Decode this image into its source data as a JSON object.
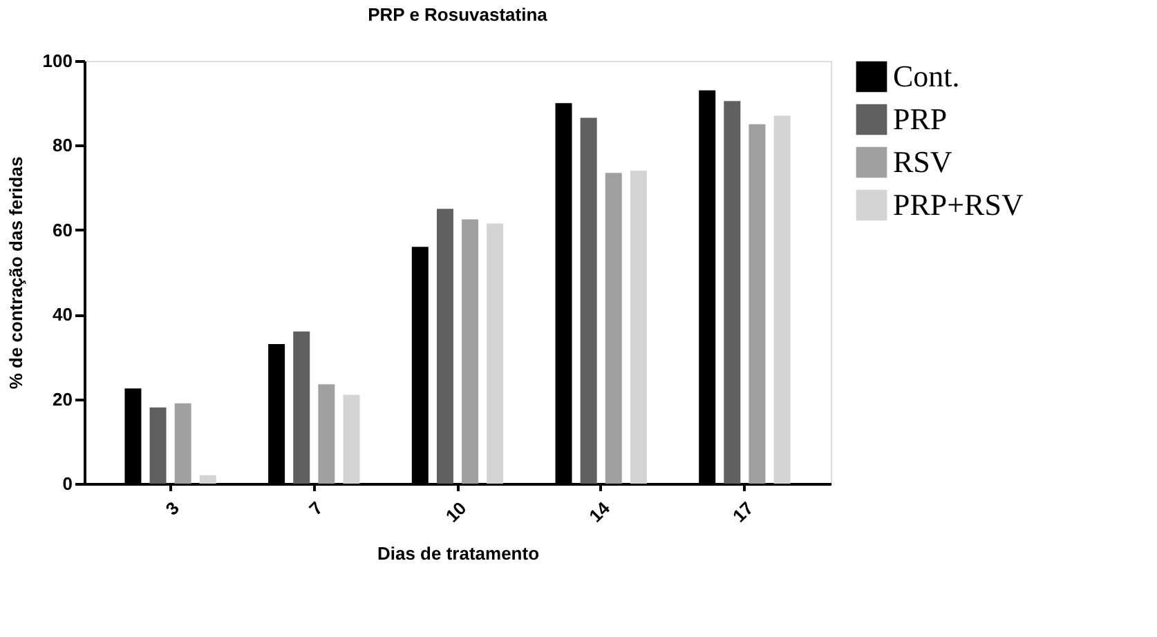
{
  "chart_data": {
    "type": "bar",
    "title": "PRP e Rosuvastatina",
    "xlabel": "Dias de tratamento",
    "ylabel": "% de contração das feridas",
    "categories": [
      "3",
      "7",
      "10",
      "14",
      "17"
    ],
    "series": [
      {
        "name": "Cont.",
        "color": "#000000",
        "values": [
          22.5,
          33,
          56,
          90,
          93
        ]
      },
      {
        "name": "PRP",
        "color": "#606060",
        "values": [
          18,
          36,
          65,
          86.5,
          90.5
        ]
      },
      {
        "name": "RSV",
        "color": "#a0a0a1",
        "values": [
          19,
          23.5,
          62.5,
          73.5,
          85
        ]
      },
      {
        "name": "PRP+RSV",
        "color": "#d4d4d4",
        "values": [
          2,
          21,
          61.5,
          74,
          87
        ]
      }
    ],
    "ylim": [
      0,
      100
    ],
    "yticks": [
      0,
      20,
      40,
      60,
      80,
      100
    ],
    "grid": false,
    "legend": "right"
  }
}
